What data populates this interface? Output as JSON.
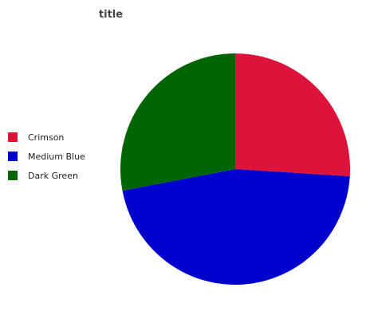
{
  "chart_data": {
    "type": "pie",
    "title": "title",
    "labels": [
      "Crimson",
      "Medium Blue",
      "Dark Green"
    ],
    "values": [
      26,
      46,
      28
    ],
    "colors": [
      "#dc143c",
      "#0000cd",
      "#006400"
    ],
    "legend_position": "left",
    "start_angle": "top",
    "direction": "clockwise"
  }
}
